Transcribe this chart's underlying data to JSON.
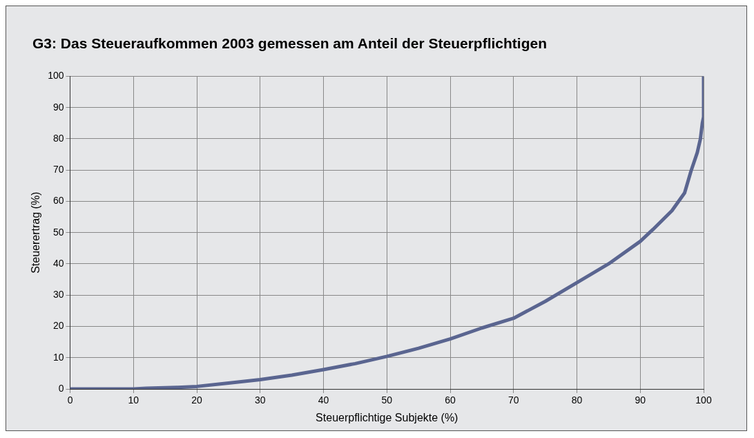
{
  "chart_data": {
    "type": "line",
    "title": "G3: Das Steueraufkommen 2003 gemessen am Anteil der Steuerpflichtigen",
    "xlabel": "Steuerpflichtige Subjekte (%)",
    "ylabel": "Steuerertrag (%)",
    "series": [
      {
        "color": "#5a6590",
        "x": [
          0,
          10,
          12,
          17,
          20,
          25,
          30,
          35,
          40,
          45,
          50,
          55,
          60,
          65,
          70,
          75,
          80,
          85,
          90,
          92,
          95,
          97,
          98,
          99,
          99.5,
          99.8,
          100,
          100
        ],
        "values": [
          0,
          0,
          0.2,
          0.5,
          0.8,
          1.9,
          3,
          4.4,
          6.2,
          8.1,
          10.4,
          13,
          16,
          19.5,
          22.6,
          28,
          34,
          40,
          47.2,
          51,
          57,
          62.7,
          69.6,
          75.6,
          80,
          85,
          87,
          100
        ]
      }
    ],
    "xlim": [
      0,
      100
    ],
    "ylim": [
      0,
      100
    ],
    "xticks": [
      0,
      10,
      20,
      30,
      40,
      50,
      60,
      70,
      80,
      90,
      100
    ],
    "yticks": [
      0,
      10,
      20,
      30,
      40,
      50,
      60,
      70,
      80,
      90,
      100
    ],
    "grid": true,
    "legend": false,
    "marker": "none",
    "line_style": "solid"
  }
}
